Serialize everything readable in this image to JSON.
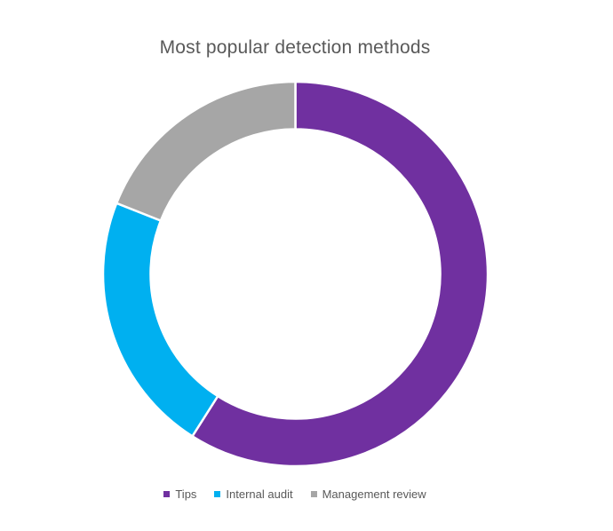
{
  "chart_data": {
    "type": "pie",
    "subtype": "donut",
    "title": "Most popular detection methods",
    "categories": [
      "Tips",
      "Internal audit",
      "Management review"
    ],
    "values": [
      59,
      22,
      19
    ],
    "unit": "%",
    "colors": [
      "#7030A0",
      "#00B0F0",
      "#A6A6A6"
    ],
    "start_angle_deg": 0,
    "direction": "clockwise",
    "legend_position": "bottom",
    "data_labels": false
  },
  "title": "Most popular detection methods",
  "legend": {
    "items": [
      {
        "label": "Tips",
        "color": "#7030A0"
      },
      {
        "label": "Internal audit",
        "color": "#00B0F0"
      },
      {
        "label": "Management review",
        "color": "#A6A6A6"
      }
    ]
  }
}
